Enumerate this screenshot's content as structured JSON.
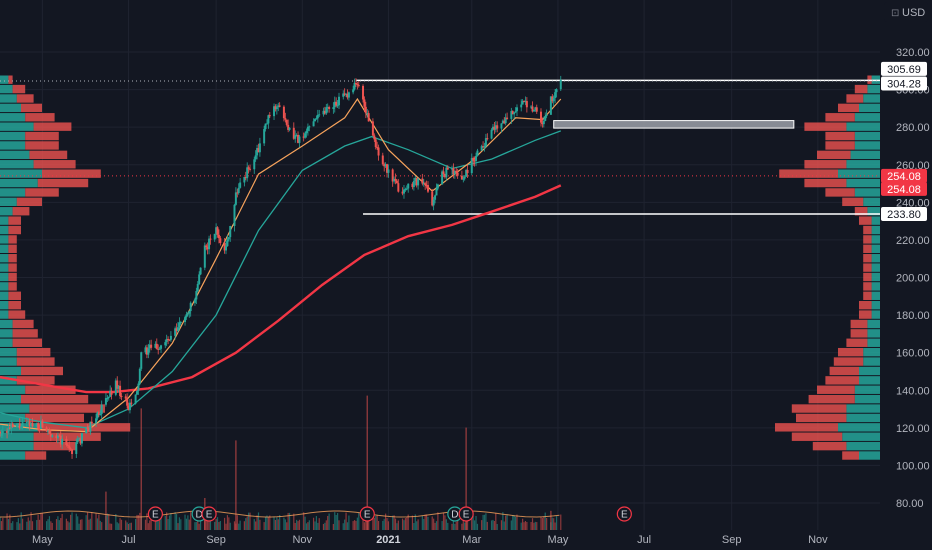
{
  "currency_label": "USD",
  "chart_data": {
    "type": "candlestick",
    "y_ticks": [
      "320.00",
      "300.00",
      "280.00",
      "260.00",
      "240.00",
      "220.00",
      "200.00",
      "180.00",
      "160.00",
      "140.00",
      "120.00",
      "100.00",
      "80.00"
    ],
    "y_tick_values": [
      320,
      300,
      280,
      260,
      240,
      220,
      200,
      180,
      160,
      140,
      120,
      100,
      80
    ],
    "ylim": [
      70,
      330
    ],
    "x_ticks": [
      {
        "label": "May",
        "date": "2020-05-01"
      },
      {
        "label": "Jul",
        "date": "2020-07-01"
      },
      {
        "label": "Sep",
        "date": "2020-09-01"
      },
      {
        "label": "Nov",
        "date": "2020-11-01"
      },
      {
        "label": "2021",
        "date": "2021-01-01",
        "bold": true
      },
      {
        "label": "Mar",
        "date": "2021-03-01"
      },
      {
        "label": "May",
        "date": "2021-05-01"
      },
      {
        "label": "Jul",
        "date": "2021-07-01"
      },
      {
        "label": "Sep",
        "date": "2021-09-01"
      },
      {
        "label": "Nov",
        "date": "2021-11-01"
      }
    ],
    "price_labels": [
      {
        "value": "305.69",
        "price": 305.69,
        "bg": "#ffffff",
        "fg": "#131722"
      },
      {
        "value": "304.28",
        "price": 304.28,
        "bg": "#ffffff",
        "fg": "#131722"
      },
      {
        "value": "254.08",
        "price": 254.08,
        "bg": "#f23645",
        "fg": "#ffffff"
      },
      {
        "value": "254.08",
        "price": 254.08,
        "bg": "#f23645",
        "fg": "#ffffff",
        "offset": 1
      },
      {
        "value": "233.80",
        "price": 233.8,
        "bg": "#ffffff",
        "fg": "#131722"
      }
    ],
    "horizontal_lines": [
      {
        "price": 304.9,
        "from": "2020-12-09",
        "to": "2021-12-15",
        "color": "#ffffff",
        "style": "solid"
      },
      {
        "price": 304.6,
        "from": "2020-04-01",
        "to": "2021-12-15",
        "color": "#b2b5be",
        "style": "dotted"
      },
      {
        "price": 233.8,
        "from": "2020-12-14",
        "to": "2021-12-15",
        "color": "#ffffff",
        "style": "solid"
      },
      {
        "price": 254.08,
        "from": "2020-04-01",
        "to": "2021-12-15",
        "color": "#f23645",
        "style": "dotted"
      }
    ],
    "zone": {
      "from": "2021-04-28",
      "to": "2021-10-15",
      "low": 279.5,
      "high": 283.5,
      "color": "#9598a1"
    },
    "earnings_markers": [
      {
        "label": "E",
        "date": "2020-07-20"
      },
      {
        "label": "D",
        "date": "2020-08-20"
      },
      {
        "label": "E",
        "date": "2020-08-27"
      },
      {
        "label": "E",
        "date": "2020-12-17"
      },
      {
        "label": "D",
        "date": "2021-02-17"
      },
      {
        "label": "E",
        "date": "2021-02-25"
      },
      {
        "label": "E",
        "date": "2021-06-17"
      }
    ],
    "volume_profile_left": {
      "x_anchor": "2020-04-01",
      "levels": [
        [
          105,
          6,
          5
        ],
        [
          110,
          8,
          10
        ],
        [
          115,
          8,
          16
        ],
        [
          120,
          9,
          22
        ],
        [
          125,
          6,
          14
        ],
        [
          130,
          7,
          18
        ],
        [
          135,
          5,
          16
        ],
        [
          140,
          6,
          12
        ],
        [
          145,
          4,
          9
        ],
        [
          150,
          5,
          10
        ],
        [
          155,
          4,
          9
        ],
        [
          160,
          4,
          8
        ],
        [
          165,
          3,
          7
        ],
        [
          170,
          3,
          6
        ],
        [
          175,
          3,
          5
        ],
        [
          180,
          2,
          4
        ],
        [
          185,
          2,
          3
        ],
        [
          190,
          2,
          3
        ],
        [
          195,
          2,
          2
        ],
        [
          200,
          2,
          2
        ],
        [
          205,
          2,
          2
        ],
        [
          210,
          2,
          2
        ],
        [
          215,
          2,
          2
        ],
        [
          220,
          2,
          2
        ],
        [
          225,
          2,
          3
        ],
        [
          230,
          2,
          3
        ],
        [
          235,
          3,
          4
        ],
        [
          240,
          4,
          6
        ],
        [
          245,
          6,
          8
        ],
        [
          250,
          9,
          12
        ],
        [
          255,
          10,
          14
        ],
        [
          260,
          8,
          10
        ],
        [
          265,
          7,
          9
        ],
        [
          270,
          6,
          8
        ],
        [
          275,
          6,
          8
        ],
        [
          280,
          8,
          9
        ],
        [
          285,
          6,
          7
        ],
        [
          290,
          5,
          5
        ],
        [
          295,
          4,
          4
        ],
        [
          300,
          3,
          3
        ],
        [
          305,
          2,
          1
        ]
      ]
    },
    "volume_profile_right": {
      "x_anchor": "2021-12-15",
      "levels": [
        [
          105,
          5,
          4
        ],
        [
          110,
          8,
          8
        ],
        [
          115,
          9,
          12
        ],
        [
          120,
          10,
          15
        ],
        [
          125,
          8,
          12
        ],
        [
          130,
          8,
          13
        ],
        [
          135,
          6,
          11
        ],
        [
          140,
          6,
          9
        ],
        [
          145,
          5,
          8
        ],
        [
          150,
          5,
          7
        ],
        [
          155,
          4,
          7
        ],
        [
          160,
          4,
          6
        ],
        [
          165,
          3,
          5
        ],
        [
          170,
          3,
          4
        ],
        [
          175,
          3,
          4
        ],
        [
          180,
          2,
          3
        ],
        [
          185,
          2,
          3
        ],
        [
          190,
          2,
          2
        ],
        [
          195,
          2,
          2
        ],
        [
          200,
          2,
          2
        ],
        [
          205,
          2,
          2
        ],
        [
          210,
          2,
          2
        ],
        [
          215,
          2,
          2
        ],
        [
          220,
          2,
          2
        ],
        [
          225,
          2,
          2
        ],
        [
          230,
          2,
          3
        ],
        [
          235,
          3,
          3
        ],
        [
          240,
          4,
          5
        ],
        [
          245,
          6,
          7
        ],
        [
          250,
          8,
          10
        ],
        [
          255,
          10,
          14
        ],
        [
          260,
          8,
          10
        ],
        [
          265,
          7,
          8
        ],
        [
          270,
          6,
          7
        ],
        [
          275,
          6,
          7
        ],
        [
          280,
          8,
          10
        ],
        [
          285,
          6,
          7
        ],
        [
          290,
          5,
          5
        ],
        [
          295,
          4,
          4
        ],
        [
          300,
          3,
          3
        ],
        [
          305,
          2,
          1
        ]
      ]
    },
    "price_path": [
      [
        "2020-04-01",
        118
      ],
      [
        "2020-04-15",
        121
      ],
      [
        "2020-05-01",
        122
      ],
      [
        "2020-05-15",
        112
      ],
      [
        "2020-05-22",
        108
      ],
      [
        "2020-06-01",
        118
      ],
      [
        "2020-06-15",
        134
      ],
      [
        "2020-06-22",
        144
      ],
      [
        "2020-07-01",
        130
      ],
      [
        "2020-07-07",
        138
      ],
      [
        "2020-07-10",
        158
      ],
      [
        "2020-07-15",
        162
      ],
      [
        "2020-07-22",
        163
      ],
      [
        "2020-08-01",
        168
      ],
      [
        "2020-08-10",
        180
      ],
      [
        "2020-08-17",
        188
      ],
      [
        "2020-08-24",
        215
      ],
      [
        "2020-09-01",
        225
      ],
      [
        "2020-09-08",
        215
      ],
      [
        "2020-09-15",
        245
      ],
      [
        "2020-09-22",
        255
      ],
      [
        "2020-10-01",
        268
      ],
      [
        "2020-10-08",
        285
      ],
      [
        "2020-10-15",
        293
      ],
      [
        "2020-10-22",
        278
      ],
      [
        "2020-11-01",
        272
      ],
      [
        "2020-11-08",
        285
      ],
      [
        "2020-11-15",
        288
      ],
      [
        "2020-11-22",
        292
      ],
      [
        "2020-12-01",
        296
      ],
      [
        "2020-12-09",
        304
      ],
      [
        "2020-12-15",
        292
      ],
      [
        "2020-12-22",
        272
      ],
      [
        "2021-01-01",
        255
      ],
      [
        "2021-01-10",
        245
      ],
      [
        "2021-01-20",
        252
      ],
      [
        "2021-01-28",
        248
      ],
      [
        "2021-02-01",
        240
      ],
      [
        "2021-02-08",
        255
      ],
      [
        "2021-02-15",
        258
      ],
      [
        "2021-02-22",
        252
      ],
      [
        "2021-03-01",
        262
      ],
      [
        "2021-03-08",
        270
      ],
      [
        "2021-03-15",
        278
      ],
      [
        "2021-03-22",
        283
      ],
      [
        "2021-04-01",
        290
      ],
      [
        "2021-04-08",
        292
      ],
      [
        "2021-04-15",
        290
      ],
      [
        "2021-04-20",
        282
      ],
      [
        "2021-04-26",
        294
      ],
      [
        "2021-05-03",
        304
      ]
    ],
    "ma200": [
      [
        "2020-04-01",
        147
      ],
      [
        "2020-05-01",
        143
      ],
      [
        "2020-06-01",
        139
      ],
      [
        "2020-06-20",
        139
      ],
      [
        "2020-07-15",
        141
      ],
      [
        "2020-08-15",
        147
      ],
      [
        "2020-09-15",
        160
      ],
      [
        "2020-10-15",
        177
      ],
      [
        "2020-11-15",
        196
      ],
      [
        "2020-12-15",
        212
      ],
      [
        "2021-01-15",
        222
      ],
      [
        "2021-02-15",
        228
      ],
      [
        "2021-03-15",
        235
      ],
      [
        "2021-04-15",
        243
      ],
      [
        "2021-05-03",
        249
      ]
    ],
    "ma50": [
      [
        "2020-04-01",
        128
      ],
      [
        "2020-05-01",
        123
      ],
      [
        "2020-06-01",
        120
      ],
      [
        "2020-07-01",
        130
      ],
      [
        "2020-08-01",
        150
      ],
      [
        "2020-09-01",
        180
      ],
      [
        "2020-10-01",
        225
      ],
      [
        "2020-11-01",
        257
      ],
      [
        "2020-12-01",
        270
      ],
      [
        "2020-12-20",
        275
      ],
      [
        "2021-01-15",
        268
      ],
      [
        "2021-02-15",
        258
      ],
      [
        "2021-03-15",
        263
      ],
      [
        "2021-04-15",
        273
      ],
      [
        "2021-05-03",
        278
      ]
    ],
    "ma20": [
      [
        "2020-04-01",
        122
      ],
      [
        "2020-05-01",
        119
      ],
      [
        "2020-06-01",
        118
      ],
      [
        "2020-07-01",
        136
      ],
      [
        "2020-08-01",
        165
      ],
      [
        "2020-09-01",
        210
      ],
      [
        "2020-10-01",
        255
      ],
      [
        "2020-11-01",
        270
      ],
      [
        "2020-12-01",
        285
      ],
      [
        "2020-12-10",
        295
      ],
      [
        "2021-01-01",
        268
      ],
      [
        "2021-02-01",
        246
      ],
      [
        "2021-03-01",
        262
      ],
      [
        "2021-04-01",
        285
      ],
      [
        "2021-04-20",
        284
      ],
      [
        "2021-05-03",
        295
      ]
    ],
    "volume_spikes": [
      [
        "2020-07-10",
        38
      ],
      [
        "2020-09-15",
        28
      ],
      [
        "2020-12-17",
        42
      ],
      [
        "2021-02-25",
        32
      ],
      [
        "2020-06-15",
        12
      ],
      [
        "2020-08-24",
        10
      ],
      [
        "2021-04-26",
        6
      ]
    ]
  }
}
